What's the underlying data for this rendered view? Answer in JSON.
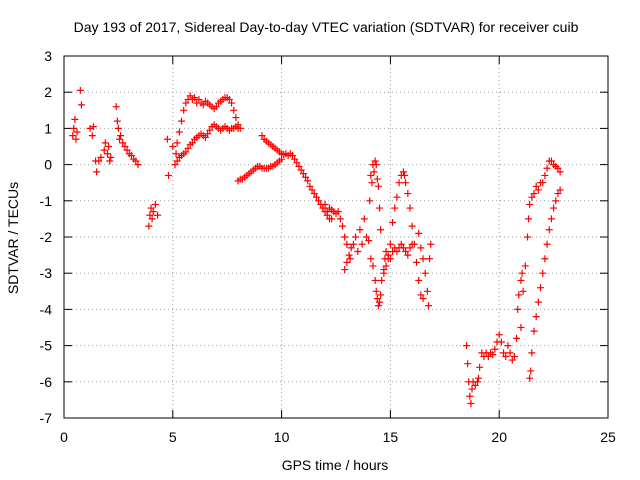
{
  "chart_data": {
    "type": "scatter",
    "title": "Day 193 of 2017, Sidereal Day-to-day VTEC variation (SDTVAR) for receiver cuib",
    "xlabel": "GPS time / hours",
    "ylabel": "SDTVAR / TECUs",
    "xlim": [
      0,
      25
    ],
    "ylim": [
      -7,
      3
    ],
    "xticks": [
      0,
      5,
      10,
      15,
      20,
      25
    ],
    "yticks": [
      -7,
      -6,
      -5,
      -4,
      -3,
      -2,
      -1,
      0,
      1,
      2,
      3
    ],
    "grid": true,
    "marker": "+",
    "color": "#ff0000",
    "series": [
      {
        "name": "SDTVAR",
        "points": [
          [
            0.4,
            0.8
          ],
          [
            0.45,
            1.0
          ],
          [
            0.5,
            1.25
          ],
          [
            0.55,
            0.7
          ],
          [
            0.6,
            0.9
          ],
          [
            0.75,
            2.05
          ],
          [
            0.8,
            1.65
          ],
          [
            1.2,
            1.0
          ],
          [
            1.3,
            0.8
          ],
          [
            1.35,
            1.05
          ],
          [
            1.45,
            0.1
          ],
          [
            1.5,
            -0.2
          ],
          [
            1.6,
            0.1
          ],
          [
            1.7,
            0.2
          ],
          [
            1.85,
            0.4
          ],
          [
            1.9,
            0.6
          ],
          [
            2.0,
            0.3
          ],
          [
            2.05,
            0.5
          ],
          [
            2.1,
            0.1
          ],
          [
            2.15,
            0.2
          ],
          [
            2.4,
            1.6
          ],
          [
            2.45,
            1.2
          ],
          [
            2.5,
            1.0
          ],
          [
            2.55,
            0.7
          ],
          [
            2.6,
            0.8
          ],
          [
            2.7,
            0.6
          ],
          [
            2.8,
            0.5
          ],
          [
            2.9,
            0.4
          ],
          [
            3.0,
            0.3
          ],
          [
            3.1,
            0.25
          ],
          [
            3.2,
            0.15
          ],
          [
            3.3,
            0.1
          ],
          [
            3.4,
            0.0
          ],
          [
            3.9,
            -1.7
          ],
          [
            3.95,
            -1.4
          ],
          [
            4.0,
            -1.2
          ],
          [
            4.05,
            -1.5
          ],
          [
            4.1,
            -1.3
          ],
          [
            4.2,
            -1.1
          ],
          [
            4.3,
            -1.4
          ],
          [
            4.75,
            0.7
          ],
          [
            4.8,
            -0.3
          ],
          [
            5.0,
            0.5
          ],
          [
            5.1,
            0.0
          ],
          [
            5.15,
            0.3
          ],
          [
            5.2,
            0.6
          ],
          [
            5.3,
            0.9
          ],
          [
            5.4,
            1.2
          ],
          [
            5.5,
            1.5
          ],
          [
            5.6,
            1.7
          ],
          [
            5.7,
            1.8
          ],
          [
            5.8,
            1.9
          ],
          [
            5.9,
            1.8
          ],
          [
            6.0,
            1.85
          ],
          [
            6.1,
            1.7
          ],
          [
            6.2,
            1.8
          ],
          [
            6.3,
            1.7
          ],
          [
            6.4,
            1.65
          ],
          [
            6.5,
            1.75
          ],
          [
            6.6,
            1.7
          ],
          [
            6.7,
            1.65
          ],
          [
            6.8,
            1.6
          ],
          [
            6.9,
            1.55
          ],
          [
            7.0,
            1.6
          ],
          [
            7.1,
            1.7
          ],
          [
            7.2,
            1.75
          ],
          [
            7.3,
            1.8
          ],
          [
            7.4,
            1.85
          ],
          [
            7.5,
            1.85
          ],
          [
            7.6,
            1.8
          ],
          [
            7.7,
            1.7
          ],
          [
            7.8,
            1.5
          ],
          [
            7.9,
            1.3
          ],
          [
            8.0,
            1.1
          ],
          [
            5.2,
            0.1
          ],
          [
            5.3,
            0.2
          ],
          [
            5.4,
            0.25
          ],
          [
            5.5,
            0.3
          ],
          [
            5.6,
            0.35
          ],
          [
            5.7,
            0.45
          ],
          [
            5.8,
            0.55
          ],
          [
            5.9,
            0.6
          ],
          [
            6.0,
            0.7
          ],
          [
            6.1,
            0.75
          ],
          [
            6.2,
            0.8
          ],
          [
            6.3,
            0.85
          ],
          [
            6.4,
            0.8
          ],
          [
            6.5,
            0.75
          ],
          [
            6.6,
            0.85
          ],
          [
            6.7,
            0.95
          ],
          [
            6.8,
            1.05
          ],
          [
            6.9,
            1.1
          ],
          [
            7.0,
            1.05
          ],
          [
            7.1,
            1.0
          ],
          [
            7.2,
            0.95
          ],
          [
            7.3,
            1.0
          ],
          [
            7.4,
            1.05
          ],
          [
            7.5,
            1.0
          ],
          [
            7.6,
            0.95
          ],
          [
            7.7,
            1.0
          ],
          [
            7.8,
            1.0
          ],
          [
            7.9,
            1.05
          ],
          [
            8.0,
            1.0
          ],
          [
            8.1,
            1.0
          ],
          [
            8.0,
            -0.45
          ],
          [
            8.1,
            -0.4
          ],
          [
            8.2,
            -0.4
          ],
          [
            8.3,
            -0.35
          ],
          [
            8.4,
            -0.3
          ],
          [
            8.5,
            -0.25
          ],
          [
            8.6,
            -0.2
          ],
          [
            8.7,
            -0.15
          ],
          [
            8.8,
            -0.1
          ],
          [
            8.9,
            -0.05
          ],
          [
            9.0,
            -0.05
          ],
          [
            9.1,
            -0.1
          ],
          [
            9.2,
            -0.1
          ],
          [
            9.3,
            -0.1
          ],
          [
            9.4,
            -0.1
          ],
          [
            9.5,
            -0.05
          ],
          [
            9.6,
            -0.05
          ],
          [
            9.7,
            0.0
          ],
          [
            9.8,
            0.05
          ],
          [
            9.9,
            0.1
          ],
          [
            10.0,
            0.15
          ],
          [
            9.1,
            0.8
          ],
          [
            9.2,
            0.7
          ],
          [
            9.3,
            0.65
          ],
          [
            9.4,
            0.6
          ],
          [
            9.5,
            0.55
          ],
          [
            9.6,
            0.5
          ],
          [
            9.7,
            0.45
          ],
          [
            9.8,
            0.4
          ],
          [
            9.9,
            0.35
          ],
          [
            10.0,
            0.3
          ],
          [
            10.1,
            0.28
          ],
          [
            10.2,
            0.3
          ],
          [
            10.3,
            0.25
          ],
          [
            10.4,
            0.3
          ],
          [
            10.5,
            0.25
          ],
          [
            10.6,
            0.15
          ],
          [
            10.7,
            0.05
          ],
          [
            10.8,
            -0.05
          ],
          [
            10.9,
            -0.15
          ],
          [
            11.0,
            -0.25
          ],
          [
            11.1,
            -0.35
          ],
          [
            11.2,
            -0.45
          ],
          [
            11.3,
            -0.6
          ],
          [
            11.4,
            -0.7
          ],
          [
            11.5,
            -0.8
          ],
          [
            11.6,
            -0.9
          ],
          [
            11.7,
            -1.0
          ],
          [
            11.8,
            -1.1
          ],
          [
            11.9,
            -1.2
          ],
          [
            12.0,
            -1.3
          ],
          [
            12.1,
            -1.4
          ],
          [
            12.2,
            -1.5
          ],
          [
            12.3,
            -1.5
          ],
          [
            11.9,
            -1.2
          ],
          [
            12.0,
            -1.1
          ],
          [
            12.1,
            -1.3
          ],
          [
            12.2,
            -1.2
          ],
          [
            12.3,
            -1.25
          ],
          [
            12.4,
            -1.3
          ],
          [
            12.5,
            -1.35
          ],
          [
            12.6,
            -1.3
          ],
          [
            12.7,
            -1.5
          ],
          [
            12.8,
            -1.7
          ],
          [
            12.9,
            -2.0
          ],
          [
            13.0,
            -2.2
          ],
          [
            12.9,
            -2.9
          ],
          [
            13.0,
            -2.7
          ],
          [
            13.1,
            -2.5
          ],
          [
            13.15,
            -2.6
          ],
          [
            13.2,
            -2.3
          ],
          [
            13.3,
            -2.2
          ],
          [
            13.4,
            -2.0
          ],
          [
            13.5,
            -2.4
          ],
          [
            13.6,
            -1.8
          ],
          [
            13.7,
            -2.2
          ],
          [
            13.8,
            -1.5
          ],
          [
            13.9,
            -2.0
          ],
          [
            14.0,
            -2.1
          ],
          [
            14.05,
            -1.0
          ],
          [
            14.1,
            -0.3
          ],
          [
            14.15,
            -0.5
          ],
          [
            14.2,
            0.0
          ],
          [
            14.25,
            -0.2
          ],
          [
            14.3,
            0.1
          ],
          [
            14.35,
            0.0
          ],
          [
            14.4,
            -0.4
          ],
          [
            14.45,
            -0.6
          ],
          [
            14.5,
            -1.2
          ],
          [
            14.55,
            -1.8
          ],
          [
            14.1,
            -2.6
          ],
          [
            14.2,
            -2.8
          ],
          [
            14.3,
            -3.2
          ],
          [
            14.35,
            -3.5
          ],
          [
            14.4,
            -3.7
          ],
          [
            14.45,
            -3.9
          ],
          [
            14.5,
            -3.8
          ],
          [
            14.55,
            -3.6
          ],
          [
            14.6,
            -3.2
          ],
          [
            14.7,
            -2.9
          ],
          [
            14.75,
            -2.6
          ],
          [
            14.8,
            -2.4
          ],
          [
            14.9,
            -2.5
          ],
          [
            15.0,
            -2.6
          ],
          [
            15.1,
            -2.4
          ],
          [
            15.2,
            -2.3
          ],
          [
            15.3,
            -2.4
          ],
          [
            15.4,
            -2.3
          ],
          [
            15.5,
            -2.2
          ],
          [
            15.6,
            -2.3
          ],
          [
            15.7,
            -2.4
          ],
          [
            15.8,
            -2.5
          ],
          [
            15.9,
            -2.3
          ],
          [
            16.0,
            -2.2
          ],
          [
            14.7,
            -3.0
          ],
          [
            14.8,
            -2.8
          ],
          [
            14.9,
            -2.6
          ],
          [
            15.0,
            -2.2
          ],
          [
            15.1,
            -1.6
          ],
          [
            15.2,
            -1.2
          ],
          [
            15.3,
            -0.9
          ],
          [
            15.4,
            -0.5
          ],
          [
            15.5,
            -0.3
          ],
          [
            15.6,
            -0.2
          ],
          [
            15.65,
            -0.3
          ],
          [
            15.7,
            -0.5
          ],
          [
            15.8,
            -0.8
          ],
          [
            15.9,
            -1.2
          ],
          [
            16.0,
            -1.7
          ],
          [
            16.1,
            -2.2
          ],
          [
            16.2,
            -2.7
          ],
          [
            16.3,
            -3.2
          ],
          [
            16.4,
            -3.6
          ],
          [
            16.5,
            -3.7
          ],
          [
            16.3,
            -1.9
          ],
          [
            16.4,
            -2.3
          ],
          [
            16.5,
            -2.6
          ],
          [
            16.6,
            -3.0
          ],
          [
            16.7,
            -3.5
          ],
          [
            16.75,
            -3.9
          ],
          [
            16.8,
            -2.6
          ],
          [
            16.85,
            -2.2
          ],
          [
            18.5,
            -5.0
          ],
          [
            18.55,
            -5.5
          ],
          [
            18.6,
            -6.0
          ],
          [
            18.65,
            -6.4
          ],
          [
            18.7,
            -6.6
          ],
          [
            18.75,
            -6.2
          ],
          [
            18.8,
            -6.0
          ],
          [
            18.9,
            -6.1
          ],
          [
            19.0,
            -6.0
          ],
          [
            19.05,
            -5.9
          ],
          [
            19.1,
            -5.6
          ],
          [
            19.2,
            -5.2
          ],
          [
            19.3,
            -5.3
          ],
          [
            19.4,
            -5.2
          ],
          [
            19.5,
            -5.3
          ],
          [
            19.6,
            -5.2
          ],
          [
            19.7,
            -5.25
          ],
          [
            19.8,
            -5.1
          ],
          [
            19.9,
            -4.9
          ],
          [
            20.0,
            -4.7
          ],
          [
            20.1,
            -4.9
          ],
          [
            20.2,
            -5.2
          ],
          [
            20.3,
            -5.3
          ],
          [
            20.4,
            -5.0
          ],
          [
            20.5,
            -5.2
          ],
          [
            20.6,
            -5.4
          ],
          [
            20.7,
            -5.3
          ],
          [
            20.8,
            -4.8
          ],
          [
            20.85,
            -4.0
          ],
          [
            20.9,
            -3.6
          ],
          [
            21.0,
            -3.2
          ],
          [
            21.05,
            -3.0
          ],
          [
            21.0,
            -4.5
          ],
          [
            21.1,
            -3.5
          ],
          [
            21.2,
            -2.8
          ],
          [
            21.3,
            -2.0
          ],
          [
            21.35,
            -1.5
          ],
          [
            21.4,
            -1.1
          ],
          [
            21.5,
            -0.9
          ],
          [
            21.6,
            -0.8
          ],
          [
            21.7,
            -0.6
          ],
          [
            21.8,
            -0.7
          ],
          [
            21.9,
            -0.5
          ],
          [
            22.0,
            -0.5
          ],
          [
            22.1,
            -0.3
          ],
          [
            22.2,
            -0.1
          ],
          [
            22.3,
            0.1
          ],
          [
            22.4,
            0.1
          ],
          [
            22.5,
            0.0
          ],
          [
            22.6,
            -0.05
          ],
          [
            22.7,
            -0.1
          ],
          [
            22.8,
            -0.2
          ],
          [
            21.4,
            -5.9
          ],
          [
            21.45,
            -5.7
          ],
          [
            21.5,
            -5.2
          ],
          [
            21.6,
            -4.6
          ],
          [
            21.7,
            -4.2
          ],
          [
            21.8,
            -3.8
          ],
          [
            21.9,
            -3.4
          ],
          [
            22.0,
            -3.0
          ],
          [
            22.1,
            -2.6
          ],
          [
            22.2,
            -2.2
          ],
          [
            22.3,
            -1.8
          ],
          [
            22.4,
            -1.5
          ],
          [
            22.5,
            -1.2
          ],
          [
            22.6,
            -1.0
          ],
          [
            22.7,
            -0.8
          ],
          [
            22.8,
            -0.7
          ]
        ]
      }
    ]
  }
}
